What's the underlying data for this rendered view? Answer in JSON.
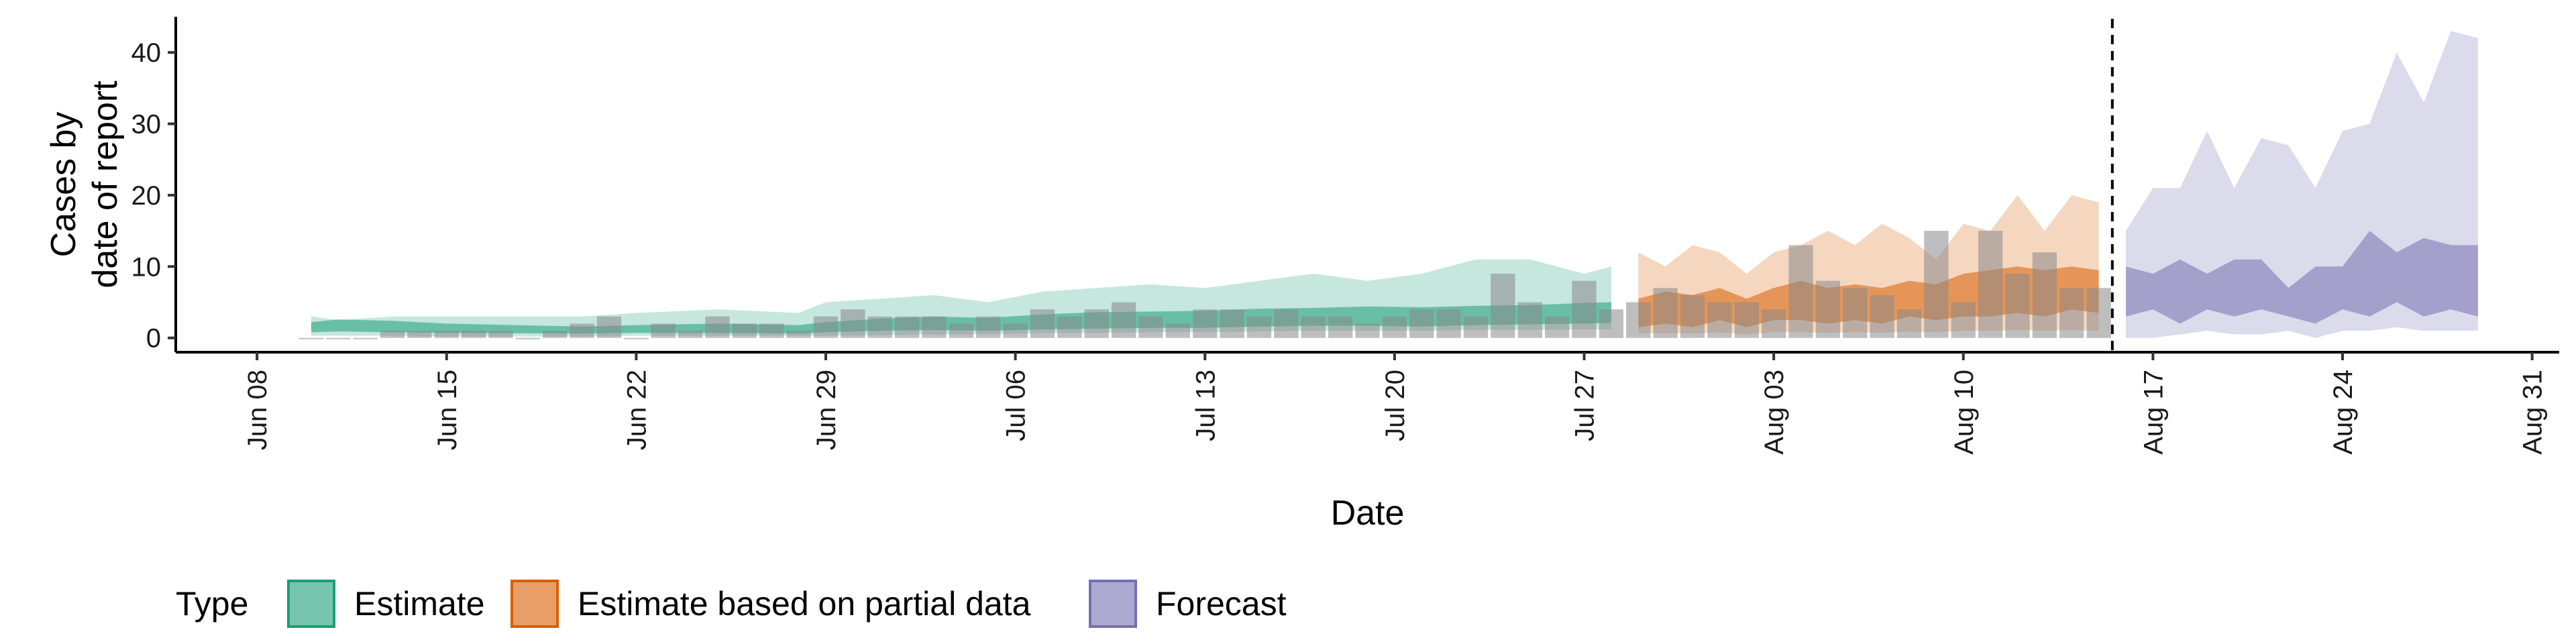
{
  "chart_data": {
    "type": "area",
    "title": "",
    "xlabel": "Date",
    "ylabel": "Cases by\ndate of report",
    "ylim": [
      -2,
      45
    ],
    "xlim": [
      "2020-06-05",
      "2020-09-01"
    ],
    "y_ticks": [
      0,
      10,
      20,
      30,
      40
    ],
    "x_ticks": [
      {
        "date": "2020-06-08",
        "label": "Jun 08"
      },
      {
        "date": "2020-06-15",
        "label": "Jun 15"
      },
      {
        "date": "2020-06-22",
        "label": "Jun 22"
      },
      {
        "date": "2020-06-29",
        "label": "Jun 29"
      },
      {
        "date": "2020-07-06",
        "label": "Jul 06"
      },
      {
        "date": "2020-07-13",
        "label": "Jul 13"
      },
      {
        "date": "2020-07-20",
        "label": "Jul 20"
      },
      {
        "date": "2020-07-27",
        "label": "Jul 27"
      },
      {
        "date": "2020-08-03",
        "label": "Aug 03"
      },
      {
        "date": "2020-08-10",
        "label": "Aug 10"
      },
      {
        "date": "2020-08-17",
        "label": "Aug 17"
      },
      {
        "date": "2020-08-24",
        "label": "Aug 24"
      },
      {
        "date": "2020-08-31",
        "label": "Aug 31"
      }
    ],
    "grid": false,
    "legend": {
      "title": "Type",
      "position": "bottom",
      "entries": [
        "Estimate",
        "Estimate based on partial data",
        "Forecast"
      ]
    },
    "reference_line": {
      "date": "2020-08-15",
      "style": "dashed"
    },
    "observed_cases": {
      "dates": [
        "2020-06-10",
        "2020-06-11",
        "2020-06-12",
        "2020-06-13",
        "2020-06-14",
        "2020-06-15",
        "2020-06-16",
        "2020-06-17",
        "2020-06-18",
        "2020-06-19",
        "2020-06-20",
        "2020-06-21",
        "2020-06-22",
        "2020-06-23",
        "2020-06-24",
        "2020-06-25",
        "2020-06-26",
        "2020-06-27",
        "2020-06-28",
        "2020-06-29",
        "2020-06-30",
        "2020-07-01",
        "2020-07-02",
        "2020-07-03",
        "2020-07-04",
        "2020-07-05",
        "2020-07-06",
        "2020-07-07",
        "2020-07-08",
        "2020-07-09",
        "2020-07-10",
        "2020-07-11",
        "2020-07-12",
        "2020-07-13",
        "2020-07-14",
        "2020-07-15",
        "2020-07-16",
        "2020-07-17",
        "2020-07-18",
        "2020-07-19",
        "2020-07-20",
        "2020-07-21",
        "2020-07-22",
        "2020-07-23",
        "2020-07-24",
        "2020-07-25",
        "2020-07-26",
        "2020-07-27",
        "2020-07-28",
        "2020-07-29",
        "2020-07-30",
        "2020-07-31",
        "2020-08-01",
        "2020-08-02",
        "2020-08-03",
        "2020-08-04",
        "2020-08-05",
        "2020-08-06",
        "2020-08-07",
        "2020-08-08",
        "2020-08-09",
        "2020-08-10",
        "2020-08-11",
        "2020-08-12",
        "2020-08-13",
        "2020-08-14",
        "2020-08-15"
      ],
      "values": [
        0,
        0,
        0,
        1,
        1,
        1,
        1,
        1,
        0,
        1,
        2,
        3,
        0,
        2,
        1,
        3,
        2,
        2,
        1,
        3,
        4,
        3,
        3,
        3,
        2,
        3,
        2,
        4,
        3,
        4,
        5,
        3,
        2,
        4,
        4,
        3,
        4,
        3,
        3,
        2,
        3,
        4,
        4,
        3,
        9,
        5,
        3,
        8,
        4,
        5,
        7,
        6,
        5,
        5,
        4,
        13,
        8,
        7,
        6,
        4,
        15,
        5,
        15,
        9,
        12,
        7,
        7
      ]
    },
    "series": [
      {
        "name": "Estimate",
        "color": "#1b9e77",
        "dates": [
          "2020-06-10",
          "2020-06-11",
          "2020-06-13",
          "2020-06-15",
          "2020-06-20",
          "2020-06-22",
          "2020-06-25",
          "2020-06-28",
          "2020-06-29",
          "2020-07-01",
          "2020-07-03",
          "2020-07-05",
          "2020-07-07",
          "2020-07-09",
          "2020-07-11",
          "2020-07-13",
          "2020-07-15",
          "2020-07-17",
          "2020-07-19",
          "2020-07-21",
          "2020-07-23",
          "2020-07-25",
          "2020-07-27",
          "2020-07-28"
        ],
        "median": [
          1.5,
          1.8,
          1.6,
          1.3,
          1.0,
          1.2,
          1.3,
          1.2,
          1.5,
          1.8,
          2.0,
          1.9,
          2.2,
          2.4,
          2.5,
          2.5,
          2.8,
          2.9,
          3.0,
          2.9,
          3.1,
          3.2,
          3.4,
          3.5
        ],
        "lower_90": [
          0.3,
          0.3,
          0.3,
          0.2,
          0.2,
          0.3,
          0.3,
          0.3,
          0.3,
          0.4,
          0.5,
          0.5,
          0.7,
          0.7,
          0.8,
          0.8,
          0.9,
          1.0,
          1.0,
          1.0,
          1.1,
          1.1,
          1.2,
          1.2
        ],
        "upper_90": [
          3,
          2.5,
          3,
          3,
          3,
          3.5,
          4,
          3.5,
          5,
          5.5,
          6,
          5,
          6.5,
          7,
          7.5,
          7,
          8,
          9,
          8,
          9,
          11,
          11,
          9,
          10
        ],
        "lower_50": [
          0.8,
          0.9,
          0.8,
          0.7,
          0.6,
          0.7,
          0.7,
          0.6,
          0.8,
          1.0,
          1.1,
          1.0,
          1.2,
          1.3,
          1.4,
          1.4,
          1.6,
          1.7,
          1.7,
          1.6,
          1.8,
          1.9,
          2.0,
          2.1
        ],
        "upper_50": [
          2.2,
          2.6,
          2.4,
          2.0,
          1.6,
          1.8,
          2.0,
          1.8,
          2.2,
          2.7,
          3.0,
          2.8,
          3.3,
          3.6,
          3.7,
          3.8,
          4.1,
          4.2,
          4.4,
          4.3,
          4.5,
          4.6,
          4.9,
          5.0
        ]
      },
      {
        "name": "Estimate based on partial data",
        "color": "#d95f02",
        "dates": [
          "2020-07-29",
          "2020-07-30",
          "2020-07-31",
          "2020-08-01",
          "2020-08-02",
          "2020-08-03",
          "2020-08-04",
          "2020-08-05",
          "2020-08-06",
          "2020-08-07",
          "2020-08-08",
          "2020-08-09",
          "2020-08-10",
          "2020-08-11",
          "2020-08-12",
          "2020-08-13",
          "2020-08-14",
          "2020-08-15"
        ],
        "median": [
          3.5,
          4.0,
          3.8,
          4.5,
          3.5,
          4.5,
          5.0,
          4.2,
          4.8,
          4.5,
          5.2,
          4.8,
          5.5,
          5.8,
          6.5,
          6.0,
          7.0,
          6.5
        ],
        "lower_90": [
          0.6,
          0.7,
          0.6,
          0.8,
          0.5,
          0.8,
          0.8,
          0.7,
          0.8,
          0.7,
          0.9,
          0.8,
          1.0,
          1.0,
          1.1,
          1.0,
          1.1,
          1.0
        ],
        "upper_90": [
          12,
          10,
          13,
          12,
          9,
          12,
          13,
          15,
          13,
          16,
          14,
          11,
          16,
          15,
          20,
          15,
          20,
          19
        ],
        "lower_50": [
          1.5,
          2.0,
          1.5,
          2.5,
          1.5,
          2.5,
          2.5,
          2.0,
          2.5,
          2.0,
          3.0,
          2.5,
          3.0,
          3.0,
          3.5,
          3.0,
          4.0,
          3.5
        ],
        "upper_50": [
          5.5,
          6.5,
          6.0,
          7.0,
          5.5,
          7.0,
          8.0,
          7.0,
          7.5,
          7.0,
          8.0,
          7.5,
          9.0,
          9.5,
          10,
          9.5,
          10,
          9.5
        ]
      },
      {
        "name": "Forecast",
        "color": "#7570b3",
        "dates": [
          "2020-08-16",
          "2020-08-17",
          "2020-08-18",
          "2020-08-19",
          "2020-08-20",
          "2020-08-21",
          "2020-08-22",
          "2020-08-23",
          "2020-08-24",
          "2020-08-25",
          "2020-08-26",
          "2020-08-27",
          "2020-08-28",
          "2020-08-29"
        ],
        "median": [
          6,
          7,
          8,
          7,
          8,
          7,
          8,
          5,
          7,
          7,
          9,
          7,
          8,
          7
        ],
        "lower_90": [
          0,
          0,
          0.5,
          1,
          0.5,
          0.5,
          1,
          0,
          1,
          1,
          1.5,
          1,
          1,
          1
        ],
        "upper_90": [
          15,
          21,
          21,
          29,
          21,
          28,
          27,
          21,
          29,
          30,
          40,
          33,
          43,
          42
        ],
        "lower_50": [
          3,
          4,
          2,
          4,
          3,
          4,
          3,
          2,
          4,
          3,
          5,
          3,
          4,
          3
        ],
        "upper_50": [
          10,
          9,
          11,
          9,
          11,
          11,
          7,
          10,
          10,
          15,
          12,
          14,
          13,
          13
        ]
      }
    ]
  }
}
